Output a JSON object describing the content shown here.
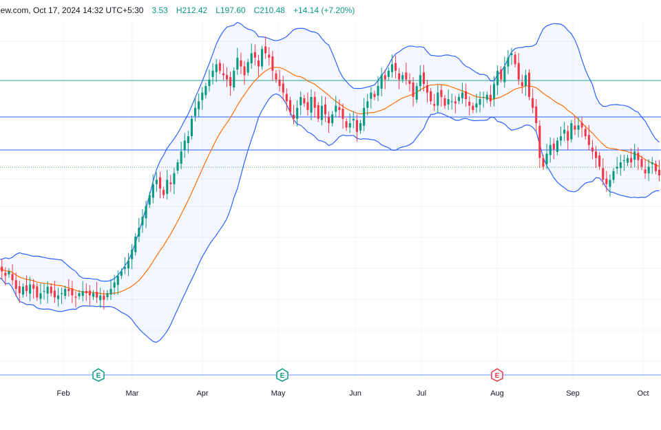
{
  "header": {
    "source_time": "iew.com, Oct 17, 2024 14:32 UTC+5:30",
    "open": "3.53",
    "high": "H212.42",
    "low": "L197.60",
    "close": "C210.48",
    "change": "+14.14 (+7.20%)"
  },
  "chart_data": {
    "type": "candlestick",
    "x_tick_labels": [
      "Feb",
      "Mar",
      "Apr",
      "May",
      "Jun",
      "Jul",
      "Aug",
      "Sep",
      "Oct"
    ],
    "event_markers": [
      {
        "label": "E",
        "month": "Feb",
        "kind": "earnings",
        "color": "#089981"
      },
      {
        "label": "E",
        "month": "May",
        "kind": "earnings",
        "color": "#089981"
      },
      {
        "label": "E",
        "month": "Aug",
        "kind": "earnings",
        "color": "#f23645"
      }
    ],
    "indicators": [
      "Bollinger Bands",
      "Basis (moving average)"
    ],
    "colors": {
      "up": "#089981",
      "down": "#f23645",
      "basis": "#ff6d00",
      "bands": "#2962ff",
      "band_fill": "#2962ff",
      "hline": "#2962ff"
    },
    "close_approx": [
      172,
      171,
      170,
      168,
      170,
      166,
      162,
      160,
      163,
      161,
      164,
      162,
      158,
      160,
      161,
      163,
      160,
      158,
      159,
      160,
      162,
      161,
      159,
      158,
      160,
      161,
      160,
      159,
      160,
      158,
      159,
      157,
      160,
      162,
      165,
      168,
      170,
      172,
      175,
      180,
      186,
      190,
      195,
      200,
      205,
      210,
      212,
      208,
      205,
      212,
      210,
      215,
      220,
      225,
      230,
      232,
      240,
      245,
      248,
      252,
      255,
      258,
      262,
      265,
      262,
      260,
      258,
      255,
      262,
      268,
      264,
      260,
      266,
      270,
      268,
      264,
      272,
      270,
      268,
      262,
      258,
      255,
      252,
      248,
      243,
      240,
      245,
      250,
      247,
      244,
      250,
      245,
      240,
      246,
      242,
      238,
      242,
      246,
      244,
      240,
      236,
      238,
      240,
      234,
      238,
      245,
      248,
      252,
      250,
      255,
      260,
      258,
      262,
      265,
      262,
      258,
      260,
      258,
      256,
      250,
      255,
      260,
      256,
      252,
      248,
      246,
      252,
      250,
      246,
      249,
      248,
      247,
      250,
      252,
      249,
      246,
      244,
      247,
      249,
      250,
      251,
      248,
      256,
      262,
      258,
      264,
      268,
      270,
      265,
      258,
      255,
      260,
      250,
      245,
      238,
      222,
      218,
      224,
      228,
      226,
      230,
      232,
      235,
      230,
      238,
      235,
      237,
      236,
      232,
      228,
      225,
      222,
      218,
      212,
      210,
      212,
      216,
      218,
      220,
      221,
      222,
      220,
      225,
      221,
      218,
      215,
      218,
      220,
      216,
      214
    ]
  }
}
